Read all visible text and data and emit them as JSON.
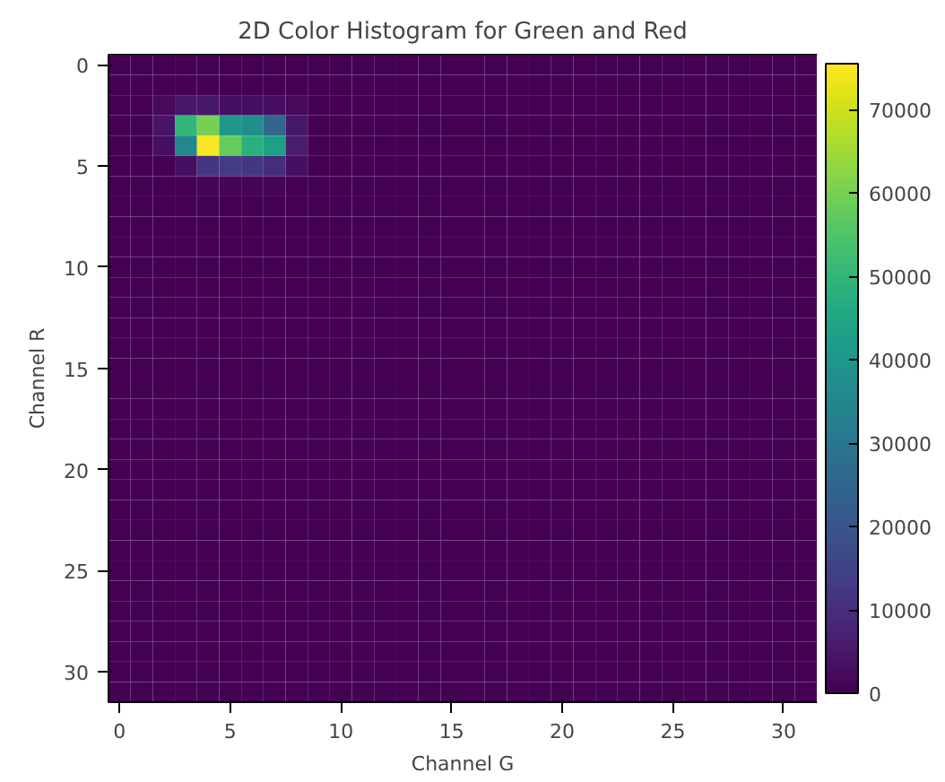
{
  "chart_data": {
    "type": "heatmap",
    "title": "2D Color Histogram for Green and Red",
    "xlabel": "Channel G",
    "ylabel": "Channel R",
    "xlim": [
      -0.5,
      31.5
    ],
    "ylim": [
      31.5,
      -0.5
    ],
    "xticks": [
      0,
      5,
      10,
      15,
      20,
      25,
      30
    ],
    "yticks": [
      0,
      5,
      10,
      15,
      20,
      25,
      30
    ],
    "clim": [
      0,
      75500
    ],
    "cticks": [
      0,
      10000,
      20000,
      30000,
      40000,
      50000,
      60000,
      70000
    ],
    "cells": [
      [
        0,
        0,
        0,
        0,
        0,
        0,
        0,
        0,
        0,
        0,
        0,
        0,
        0,
        0,
        0,
        0,
        0,
        0,
        0,
        0,
        0,
        0,
        0,
        0,
        0,
        0,
        0,
        0,
        0,
        0,
        0,
        0
      ],
      [
        0,
        0,
        0,
        0,
        0,
        0,
        0,
        0,
        0,
        0,
        0,
        0,
        0,
        0,
        0,
        0,
        0,
        0,
        0,
        0,
        0,
        0,
        0,
        0,
        0,
        0,
        0,
        0,
        0,
        0,
        0,
        0
      ],
      [
        0,
        0,
        2000,
        5000,
        5000,
        3000,
        3000,
        3000,
        2000,
        0,
        0,
        0,
        0,
        0,
        0,
        0,
        0,
        0,
        0,
        0,
        0,
        0,
        0,
        0,
        0,
        0,
        0,
        0,
        0,
        0,
        0,
        0
      ],
      [
        0,
        0,
        4000,
        50000,
        60000,
        40000,
        37000,
        25000,
        5000,
        0,
        0,
        0,
        0,
        0,
        0,
        0,
        0,
        0,
        0,
        0,
        0,
        0,
        0,
        0,
        0,
        0,
        0,
        0,
        0,
        0,
        0,
        0
      ],
      [
        0,
        0,
        3000,
        35000,
        75000,
        58000,
        48000,
        43000,
        6000,
        0,
        0,
        0,
        0,
        0,
        0,
        0,
        0,
        0,
        0,
        0,
        0,
        0,
        0,
        0,
        0,
        0,
        0,
        0,
        0,
        0,
        0,
        0
      ],
      [
        0,
        0,
        0,
        3000,
        12000,
        13000,
        12000,
        10000,
        3000,
        0,
        0,
        0,
        0,
        0,
        0,
        0,
        0,
        0,
        0,
        0,
        0,
        0,
        0,
        0,
        0,
        0,
        0,
        0,
        0,
        0,
        0,
        0
      ],
      [
        0,
        0,
        0,
        0,
        1000,
        1000,
        1000,
        1000,
        0,
        0,
        0,
        0,
        0,
        0,
        0,
        0,
        0,
        0,
        0,
        0,
        0,
        0,
        0,
        0,
        0,
        0,
        0,
        0,
        0,
        0,
        0,
        0
      ],
      [
        0,
        0,
        0,
        0,
        0,
        0,
        0,
        0,
        0,
        0,
        0,
        0,
        0,
        0,
        0,
        0,
        0,
        0,
        0,
        0,
        0,
        0,
        0,
        0,
        0,
        0,
        0,
        0,
        0,
        0,
        0,
        0
      ],
      [
        0,
        0,
        0,
        0,
        0,
        0,
        0,
        0,
        0,
        0,
        0,
        0,
        0,
        0,
        0,
        0,
        0,
        0,
        0,
        0,
        0,
        0,
        0,
        0,
        0,
        0,
        0,
        0,
        0,
        0,
        0,
        0
      ],
      [
        0,
        0,
        0,
        0,
        0,
        0,
        0,
        0,
        0,
        0,
        0,
        0,
        0,
        0,
        0,
        0,
        0,
        0,
        0,
        0,
        0,
        0,
        0,
        0,
        0,
        0,
        0,
        0,
        0,
        0,
        0,
        0
      ],
      [
        0,
        0,
        0,
        0,
        0,
        0,
        0,
        0,
        0,
        0,
        0,
        0,
        0,
        0,
        0,
        0,
        0,
        0,
        0,
        0,
        0,
        0,
        0,
        0,
        0,
        0,
        0,
        0,
        0,
        0,
        0,
        0
      ],
      [
        0,
        0,
        0,
        0,
        0,
        0,
        0,
        0,
        0,
        0,
        0,
        0,
        0,
        0,
        0,
        0,
        0,
        0,
        0,
        0,
        0,
        0,
        0,
        0,
        0,
        0,
        0,
        0,
        0,
        0,
        0,
        0
      ],
      [
        0,
        0,
        0,
        0,
        0,
        0,
        0,
        0,
        0,
        0,
        0,
        0,
        0,
        0,
        0,
        0,
        0,
        0,
        0,
        0,
        0,
        0,
        0,
        0,
        0,
        0,
        0,
        0,
        0,
        0,
        0,
        0
      ],
      [
        0,
        0,
        0,
        0,
        0,
        0,
        0,
        0,
        0,
        0,
        0,
        0,
        0,
        0,
        0,
        0,
        0,
        0,
        0,
        0,
        0,
        0,
        0,
        0,
        0,
        0,
        0,
        0,
        0,
        0,
        0,
        0
      ],
      [
        0,
        0,
        0,
        0,
        0,
        0,
        0,
        0,
        0,
        0,
        0,
        0,
        0,
        0,
        0,
        0,
        0,
        0,
        0,
        0,
        0,
        0,
        0,
        0,
        0,
        0,
        0,
        0,
        0,
        0,
        0,
        0
      ],
      [
        0,
        0,
        0,
        0,
        0,
        0,
        0,
        0,
        0,
        0,
        0,
        0,
        0,
        0,
        0,
        0,
        0,
        0,
        0,
        0,
        0,
        0,
        0,
        0,
        0,
        0,
        0,
        0,
        0,
        0,
        0,
        0
      ],
      [
        0,
        0,
        0,
        0,
        0,
        0,
        0,
        0,
        0,
        0,
        0,
        0,
        0,
        0,
        0,
        0,
        0,
        0,
        0,
        0,
        0,
        0,
        0,
        0,
        0,
        0,
        0,
        0,
        0,
        0,
        0,
        0
      ],
      [
        0,
        0,
        0,
        0,
        0,
        0,
        0,
        0,
        0,
        0,
        0,
        0,
        0,
        0,
        0,
        0,
        0,
        0,
        0,
        0,
        0,
        0,
        0,
        0,
        0,
        0,
        0,
        0,
        0,
        0,
        0,
        0
      ],
      [
        0,
        0,
        0,
        0,
        0,
        0,
        0,
        0,
        0,
        0,
        0,
        0,
        0,
        0,
        0,
        0,
        0,
        0,
        0,
        0,
        0,
        0,
        0,
        0,
        0,
        0,
        0,
        0,
        0,
        0,
        0,
        0
      ],
      [
        0,
        0,
        0,
        0,
        0,
        0,
        0,
        0,
        0,
        0,
        0,
        0,
        0,
        0,
        0,
        0,
        0,
        0,
        0,
        0,
        0,
        0,
        0,
        0,
        0,
        0,
        0,
        0,
        0,
        0,
        0,
        0
      ],
      [
        0,
        0,
        0,
        0,
        0,
        0,
        0,
        0,
        0,
        0,
        0,
        0,
        0,
        0,
        0,
        0,
        0,
        0,
        0,
        0,
        0,
        0,
        0,
        0,
        0,
        0,
        0,
        0,
        0,
        0,
        0,
        0
      ],
      [
        0,
        0,
        0,
        0,
        0,
        0,
        0,
        0,
        0,
        0,
        0,
        0,
        0,
        0,
        0,
        0,
        0,
        0,
        0,
        0,
        0,
        0,
        0,
        0,
        0,
        0,
        0,
        0,
        0,
        0,
        0,
        0
      ],
      [
        0,
        0,
        0,
        0,
        0,
        0,
        0,
        0,
        0,
        0,
        0,
        0,
        0,
        0,
        0,
        0,
        0,
        0,
        0,
        0,
        0,
        0,
        0,
        0,
        0,
        0,
        0,
        0,
        0,
        0,
        0,
        0
      ],
      [
        0,
        0,
        0,
        0,
        0,
        0,
        0,
        0,
        0,
        0,
        0,
        0,
        0,
        0,
        0,
        0,
        0,
        0,
        0,
        0,
        0,
        0,
        0,
        0,
        0,
        0,
        0,
        0,
        0,
        0,
        0,
        0
      ],
      [
        0,
        0,
        0,
        0,
        0,
        0,
        0,
        0,
        0,
        0,
        0,
        0,
        0,
        0,
        0,
        0,
        0,
        0,
        0,
        0,
        0,
        0,
        0,
        0,
        0,
        0,
        0,
        0,
        0,
        0,
        0,
        0
      ],
      [
        0,
        0,
        0,
        0,
        0,
        0,
        0,
        0,
        0,
        0,
        0,
        0,
        0,
        0,
        0,
        0,
        0,
        0,
        0,
        0,
        0,
        0,
        0,
        0,
        0,
        0,
        0,
        0,
        0,
        0,
        0,
        0
      ],
      [
        0,
        0,
        0,
        0,
        0,
        0,
        0,
        0,
        0,
        0,
        0,
        0,
        0,
        0,
        0,
        0,
        0,
        0,
        0,
        0,
        0,
        0,
        0,
        0,
        0,
        0,
        0,
        0,
        0,
        0,
        0,
        0
      ],
      [
        0,
        0,
        0,
        0,
        0,
        0,
        0,
        0,
        0,
        0,
        0,
        0,
        0,
        0,
        0,
        0,
        0,
        0,
        0,
        0,
        0,
        0,
        0,
        0,
        0,
        0,
        0,
        0,
        0,
        0,
        0,
        0
      ],
      [
        0,
        0,
        0,
        0,
        0,
        0,
        0,
        0,
        0,
        0,
        0,
        0,
        0,
        0,
        0,
        0,
        0,
        0,
        0,
        0,
        0,
        0,
        0,
        0,
        0,
        0,
        0,
        0,
        0,
        0,
        0,
        0
      ],
      [
        0,
        0,
        0,
        0,
        0,
        0,
        0,
        0,
        0,
        0,
        0,
        0,
        0,
        0,
        0,
        0,
        0,
        0,
        0,
        0,
        0,
        0,
        0,
        0,
        0,
        0,
        0,
        0,
        0,
        0,
        0,
        0
      ],
      [
        0,
        0,
        0,
        0,
        0,
        0,
        0,
        0,
        0,
        0,
        0,
        0,
        0,
        0,
        0,
        0,
        0,
        0,
        0,
        0,
        0,
        0,
        0,
        0,
        0,
        0,
        0,
        0,
        0,
        0,
        0,
        0
      ],
      [
        0,
        0,
        0,
        0,
        0,
        0,
        0,
        0,
        0,
        0,
        0,
        0,
        0,
        0,
        0,
        0,
        0,
        0,
        0,
        0,
        0,
        0,
        0,
        0,
        0,
        0,
        0,
        0,
        0,
        0,
        0,
        0
      ]
    ]
  }
}
